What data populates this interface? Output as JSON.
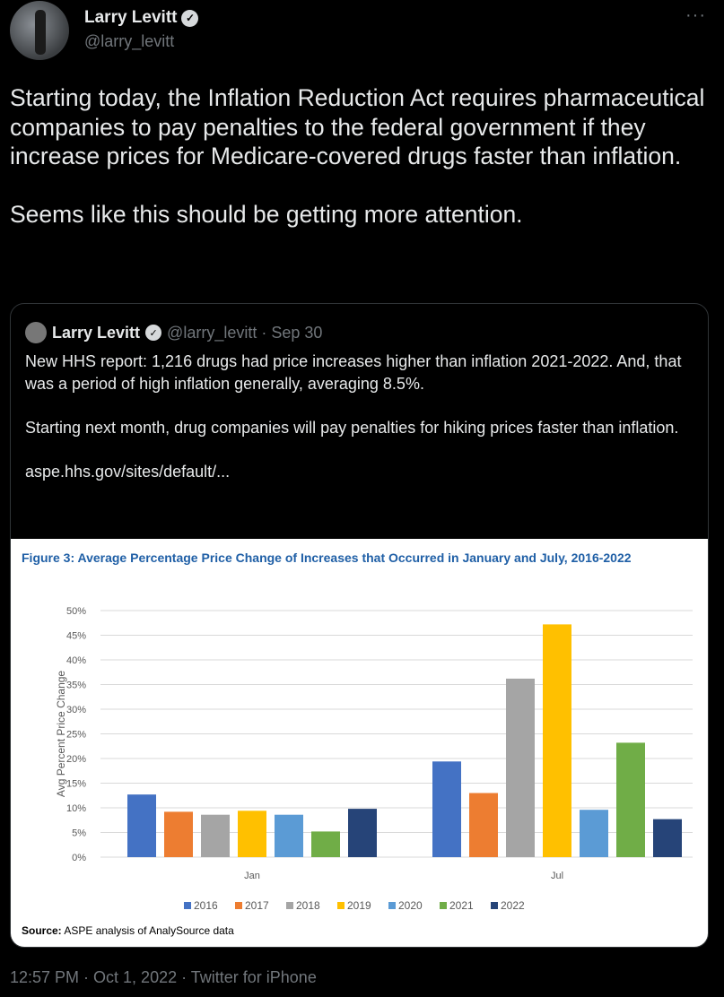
{
  "tweet": {
    "name": "Larry Levitt",
    "handle": "@larry_levitt",
    "more": "···",
    "text": "Starting today, the Inflation Reduction Act requires pharmaceutical companies to pay penalties to the federal government if they increase prices for Medicare-covered drugs faster than inflation.\n\nSeems like this should be getting more attention.",
    "footer": "12:57 PM · Oct 1, 2022 · Twitter for iPhone"
  },
  "quote": {
    "name": "Larry Levitt",
    "meta": "@larry_levitt · Sep 30",
    "text": "New HHS report: 1,216 drugs had price increases higher than inflation 2021-2022. And, that was a period of high inflation generally, averaging 8.5%.\n\nStarting next month, drug companies will pay penalties for hiking prices faster than inflation.\n\naspe.hhs.gov/sites/default/..."
  },
  "icons": {
    "verified": "verified-badge-icon",
    "more": "more-icon"
  },
  "chart_data": {
    "type": "bar",
    "title": "Figure 3: Average Percentage Price Change of Increases that Occurred in January and July, 2016-2022",
    "ylabel": "Avg Percent Price Change",
    "xlabel": "",
    "categories": [
      "Jan",
      "Jul"
    ],
    "ylim": [
      0,
      50
    ],
    "yticks": [
      "0%",
      "5%",
      "10%",
      "15%",
      "20%",
      "25%",
      "30%",
      "35%",
      "40%",
      "45%",
      "50%"
    ],
    "grid": true,
    "legend": "bottom",
    "series": [
      {
        "name": "2016",
        "color": "#4472c4",
        "values": [
          12.7,
          19.4
        ]
      },
      {
        "name": "2017",
        "color": "#ed7d31",
        "values": [
          9.2,
          13.0
        ]
      },
      {
        "name": "2018",
        "color": "#a5a5a5",
        "values": [
          8.6,
          36.2
        ]
      },
      {
        "name": "2019",
        "color": "#ffc000",
        "values": [
          9.4,
          47.2
        ]
      },
      {
        "name": "2020",
        "color": "#5b9bd5",
        "values": [
          8.6,
          9.6
        ]
      },
      {
        "name": "2021",
        "color": "#70ad47",
        "values": [
          5.2,
          23.2
        ]
      },
      {
        "name": "2022",
        "color": "#264478",
        "values": [
          9.8,
          7.7
        ]
      }
    ],
    "source_label": "Source:",
    "source": " ASPE analysis of AnalySource data"
  }
}
